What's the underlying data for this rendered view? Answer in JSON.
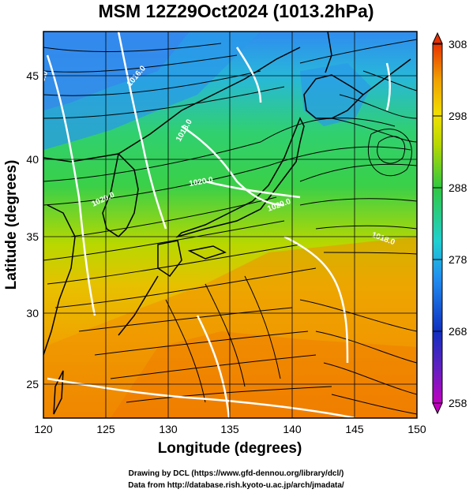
{
  "title": "MSM 12Z29Oct2024 (1013.2hPa)",
  "xlabel": "Longitude (degrees)",
  "ylabel": "Latitude  (degrees)",
  "x_ticks": [
    "120",
    "125",
    "130",
    "135",
    "140",
    "145",
    "150"
  ],
  "y_ticks": [
    "25",
    "30",
    "35",
    "40",
    "45"
  ],
  "colorbar_ticks": [
    "308",
    "298",
    "288",
    "278",
    "268",
    "258"
  ],
  "contour_labels": [
    "1016.0",
    "1018.0",
    "1020.0",
    "1020.0",
    "1020.0",
    "1016.0",
    "1018.0"
  ],
  "credit_line1": "Drawing by DCL (https://www.gfd-dennou.org/library/dcl/)",
  "credit_line2": "Data from http://database.rish.kyoto-u.ac.jp/arch/jmadata/",
  "map": {
    "lon_range": [
      120,
      150
    ],
    "lat_range": [
      22.4,
      47.6
    ],
    "colorbar_range": [
      258,
      308
    ],
    "colors": {
      "cold": "#2f8cf0",
      "cool": "#22c8c0",
      "mild": "#3ad048",
      "warm": "#c8d800",
      "hot": "#f0a000",
      "hottest": "#f07a00",
      "coast": "#000000",
      "contour": "#ffffff"
    }
  }
}
